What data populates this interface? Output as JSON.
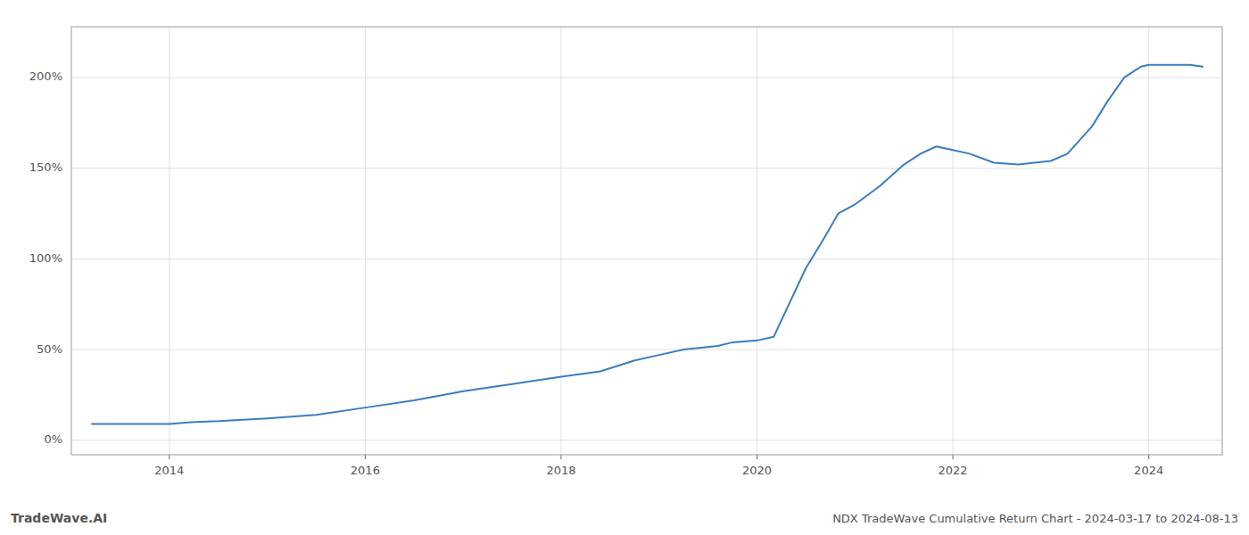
{
  "chart_data": {
    "type": "line",
    "title": "NDX TradeWave Cumulative Return Chart - 2024-03-17 to 2024-08-13",
    "annotations": [
      "TradeWave.AI"
    ],
    "color": "#3a7ebf",
    "x": [
      2013.21,
      2014.0,
      2014.22,
      2014.5,
      2015.0,
      2015.5,
      2016.0,
      2016.5,
      2017.0,
      2017.5,
      2018.0,
      2018.4,
      2018.75,
      2019.0,
      2019.25,
      2019.6,
      2019.75,
      2020.0,
      2020.17,
      2020.5,
      2020.67,
      2020.83,
      2021.0,
      2021.25,
      2021.5,
      2021.67,
      2021.83,
      2022.0,
      2022.17,
      2022.42,
      2022.67,
      2022.83,
      2023.0,
      2023.17,
      2023.42,
      2023.58,
      2023.75,
      2023.92,
      2024.0,
      2024.17,
      2024.42,
      2024.55
    ],
    "values": [
      9,
      9,
      10,
      10.5,
      12,
      14,
      18,
      22,
      27,
      31,
      35,
      38,
      44,
      47,
      50,
      52,
      54,
      55,
      57,
      95,
      110,
      125,
      130,
      140,
      152,
      158,
      162,
      160,
      158,
      153,
      152,
      153,
      154,
      158,
      173,
      187,
      200,
      206,
      207,
      207,
      207,
      206
    ],
    "xlim": [
      2013.0,
      2024.75
    ],
    "ylim": [
      -8,
      228
    ],
    "xticks": [
      2014,
      2016,
      2018,
      2020,
      2022,
      2024
    ],
    "yticks": [
      {
        "value": 0,
        "label": "0%"
      },
      {
        "value": 50,
        "label": "50%"
      },
      {
        "value": 100,
        "label": "100%"
      },
      {
        "value": 150,
        "label": "150%"
      },
      {
        "value": 200,
        "label": "200%"
      }
    ],
    "grid": true
  }
}
